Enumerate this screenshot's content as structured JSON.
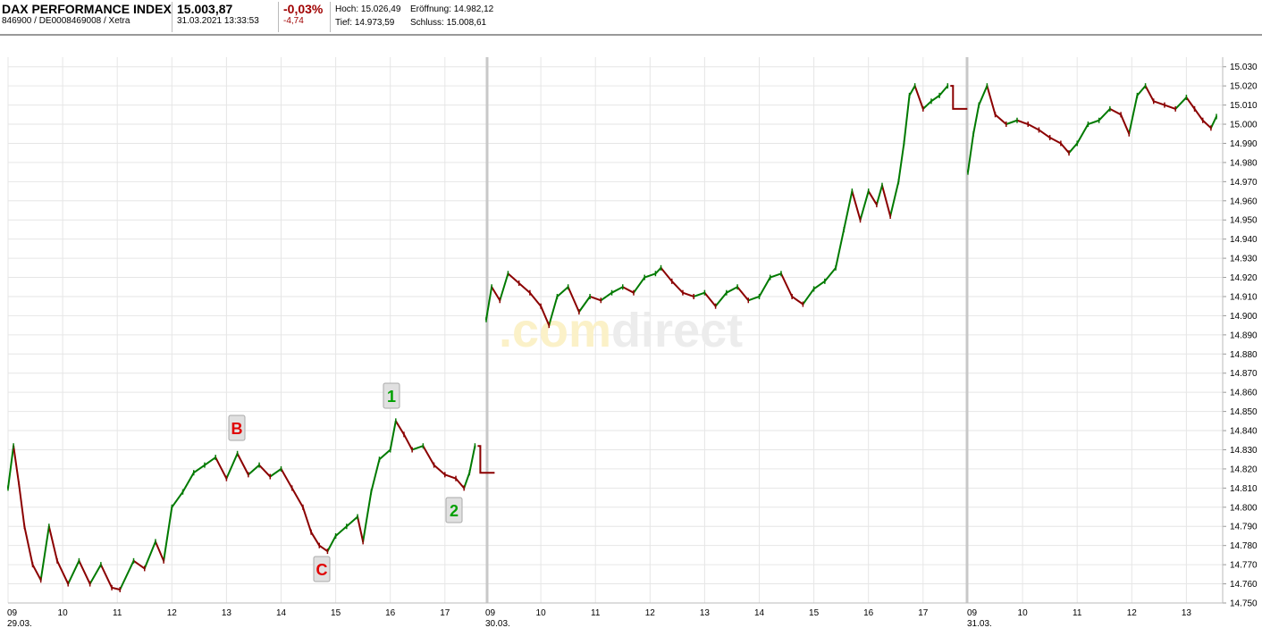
{
  "header": {
    "title": "DAX PERFORMANCE INDEX",
    "ids": "846900 / DE0008469008 / Xetra",
    "price": "15.003,87",
    "datetime": "31.03.2021 13:33:53",
    "change_pct": "-0,03%",
    "change_abs": "-4,74",
    "high_label": "Hoch:",
    "high_value": "15.026,49",
    "low_label": "Tief:",
    "low_value": "14.973,59",
    "open_label": "Eröffnung:",
    "open_value": "14.982,12",
    "close_label": "Schluss:",
    "close_value": "15.008,61"
  },
  "watermark": {
    "prefix": ".com",
    "suffix": "direct"
  },
  "colors": {
    "up": "#007a00",
    "down": "#8b0000",
    "grid": "#e6e6e6",
    "sep": "#c8c8c8",
    "watermark_a": "#fbf1c8",
    "watermark_b": "#ececec"
  },
  "chart_data": {
    "type": "line",
    "subtype": "candlestick-intraday",
    "title": "",
    "xlabel": "",
    "ylabel": "",
    "ylim": [
      14750,
      15035
    ],
    "y_ticks": [
      "15.030",
      "15.020",
      "15.010",
      "15.000",
      "14.990",
      "14.980",
      "14.970",
      "14.960",
      "14.950",
      "14.940",
      "14.930",
      "14.920",
      "14.910",
      "14.900",
      "14.890",
      "14.880",
      "14.870",
      "14.860",
      "14.850",
      "14.840",
      "14.830",
      "14.820",
      "14.810",
      "14.800",
      "14.790",
      "14.780",
      "14.770",
      "14.760",
      "14.750"
    ],
    "grid": true,
    "days": [
      {
        "date": "29.03.",
        "hours": [
          "09",
          "10",
          "11",
          "12",
          "13",
          "14",
          "15",
          "16",
          "17"
        ],
        "points": [
          [
            9.0,
            14810
          ],
          [
            9.1,
            14832
          ],
          [
            9.2,
            14812
          ],
          [
            9.3,
            14790
          ],
          [
            9.45,
            14770
          ],
          [
            9.6,
            14762
          ],
          [
            9.75,
            14790
          ],
          [
            9.9,
            14772
          ],
          [
            10.1,
            14760
          ],
          [
            10.3,
            14772
          ],
          [
            10.5,
            14760
          ],
          [
            10.7,
            14770
          ],
          [
            10.9,
            14758
          ],
          [
            11.05,
            14757
          ],
          [
            11.3,
            14772
          ],
          [
            11.5,
            14768
          ],
          [
            11.7,
            14782
          ],
          [
            11.85,
            14772
          ],
          [
            12.0,
            14800
          ],
          [
            12.2,
            14808
          ],
          [
            12.4,
            14818
          ],
          [
            12.6,
            14822
          ],
          [
            12.8,
            14826
          ],
          [
            13.0,
            14815
          ],
          [
            13.2,
            14828
          ],
          [
            13.4,
            14817
          ],
          [
            13.6,
            14822
          ],
          [
            13.8,
            14816
          ],
          [
            14.0,
            14820
          ],
          [
            14.2,
            14810
          ],
          [
            14.4,
            14800
          ],
          [
            14.55,
            14787
          ],
          [
            14.7,
            14780
          ],
          [
            14.85,
            14777
          ],
          [
            15.0,
            14785
          ],
          [
            15.2,
            14790
          ],
          [
            15.4,
            14795
          ],
          [
            15.5,
            14782
          ],
          [
            15.65,
            14808
          ],
          [
            15.8,
            14825
          ],
          [
            16.0,
            14830
          ],
          [
            16.1,
            14845
          ],
          [
            16.25,
            14838
          ],
          [
            16.4,
            14830
          ],
          [
            16.6,
            14832
          ],
          [
            16.8,
            14822
          ],
          [
            17.0,
            14817
          ],
          [
            17.2,
            14815
          ],
          [
            17.35,
            14810
          ],
          [
            17.45,
            14818
          ],
          [
            17.55,
            14832
          ]
        ],
        "close_level": 14818
      },
      {
        "date": "30.03.",
        "hours": [
          "09",
          "10",
          "11",
          "12",
          "13",
          "14",
          "15",
          "16",
          "17"
        ],
        "points": [
          [
            9.0,
            14898
          ],
          [
            9.1,
            14915
          ],
          [
            9.25,
            14908
          ],
          [
            9.4,
            14922
          ],
          [
            9.6,
            14917
          ],
          [
            9.8,
            14912
          ],
          [
            10.0,
            14905
          ],
          [
            10.15,
            14895
          ],
          [
            10.3,
            14910
          ],
          [
            10.5,
            14915
          ],
          [
            10.7,
            14902
          ],
          [
            10.9,
            14910
          ],
          [
            11.1,
            14908
          ],
          [
            11.3,
            14912
          ],
          [
            11.5,
            14915
          ],
          [
            11.7,
            14912
          ],
          [
            11.9,
            14920
          ],
          [
            12.1,
            14922
          ],
          [
            12.2,
            14925
          ],
          [
            12.4,
            14918
          ],
          [
            12.6,
            14912
          ],
          [
            12.8,
            14910
          ],
          [
            13.0,
            14912
          ],
          [
            13.2,
            14905
          ],
          [
            13.4,
            14912
          ],
          [
            13.6,
            14915
          ],
          [
            13.8,
            14908
          ],
          [
            14.0,
            14910
          ],
          [
            14.2,
            14920
          ],
          [
            14.4,
            14922
          ],
          [
            14.6,
            14910
          ],
          [
            14.8,
            14906
          ],
          [
            15.0,
            14914
          ],
          [
            15.2,
            14918
          ],
          [
            15.4,
            14925
          ],
          [
            15.55,
            14945
          ],
          [
            15.7,
            14965
          ],
          [
            15.85,
            14950
          ],
          [
            16.0,
            14965
          ],
          [
            16.15,
            14958
          ],
          [
            16.25,
            14968
          ],
          [
            16.4,
            14952
          ],
          [
            16.55,
            14970
          ],
          [
            16.65,
            14990
          ],
          [
            16.75,
            15015
          ],
          [
            16.85,
            15020
          ],
          [
            17.0,
            15008
          ],
          [
            17.15,
            15012
          ],
          [
            17.3,
            15015
          ],
          [
            17.45,
            15020
          ]
        ],
        "close_level": 15008
      },
      {
        "date": "31.03.",
        "hours": [
          "09",
          "10",
          "11",
          "12",
          "13"
        ],
        "points": [
          [
            9.0,
            14975
          ],
          [
            9.1,
            14995
          ],
          [
            9.2,
            15010
          ],
          [
            9.35,
            15020
          ],
          [
            9.5,
            15005
          ],
          [
            9.7,
            15000
          ],
          [
            9.9,
            15002
          ],
          [
            10.1,
            15000
          ],
          [
            10.3,
            14997
          ],
          [
            10.5,
            14993
          ],
          [
            10.7,
            14990
          ],
          [
            10.85,
            14985
          ],
          [
            11.0,
            14990
          ],
          [
            11.2,
            15000
          ],
          [
            11.4,
            15002
          ],
          [
            11.6,
            15008
          ],
          [
            11.8,
            15005
          ],
          [
            11.95,
            14995
          ],
          [
            12.1,
            15015
          ],
          [
            12.25,
            15020
          ],
          [
            12.4,
            15012
          ],
          [
            12.6,
            15010
          ],
          [
            12.8,
            15008
          ],
          [
            13.0,
            15014
          ],
          [
            13.15,
            15008
          ],
          [
            13.3,
            15002
          ],
          [
            13.45,
            14998
          ],
          [
            13.55,
            15004
          ]
        ],
        "close_level": null
      }
    ],
    "annotations": [
      {
        "label": "B",
        "color": "#e00000"
      },
      {
        "label": "C",
        "color": "#e00000"
      },
      {
        "label": "1",
        "color": "#00a000"
      },
      {
        "label": "2",
        "color": "#00a000"
      }
    ]
  }
}
